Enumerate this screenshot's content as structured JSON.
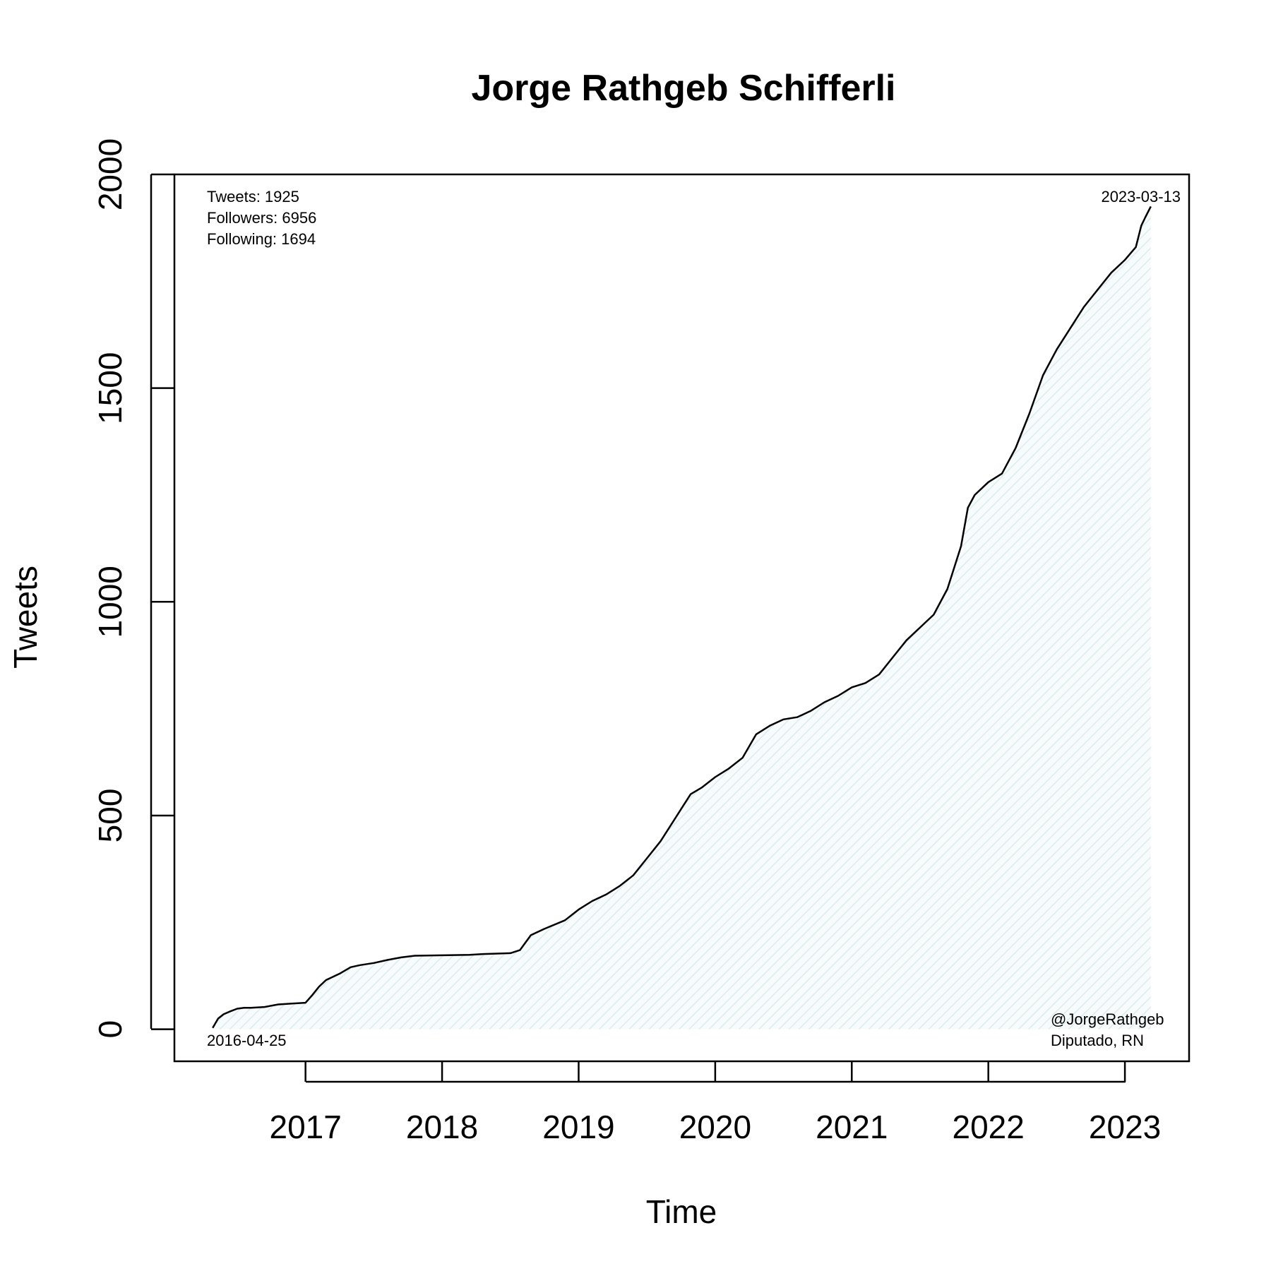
{
  "chart_data": {
    "type": "area",
    "title": "Jorge Rathgeb Schifferli",
    "xlabel": "Time",
    "ylabel": "Tweets",
    "x_ticks": [
      2017,
      2018,
      2019,
      2020,
      2021,
      2022,
      2023
    ],
    "y_ticks": [
      0,
      500,
      1000,
      1500,
      2000
    ],
    "xlim": [
      2016.04,
      2023.47
    ],
    "ylim": [
      -75,
      2000
    ],
    "grid": false,
    "start_date": "2016-04-25",
    "end_date": "2023-03-13",
    "stats": {
      "tweets": "Tweets: 1925",
      "followers": "Followers: 6956",
      "following": "Following: 1694"
    },
    "handle": "@JorgeRathgeb",
    "role": "Diputado, RN",
    "fill_color": "#e4f1f5",
    "line_color": "#000000",
    "series": [
      {
        "x": [
          2016.32,
          2016.36,
          2016.4,
          2016.45,
          2016.5,
          2016.55,
          2016.6,
          2016.7,
          2016.8,
          2016.9,
          2017.0,
          2017.05,
          2017.1,
          2017.15,
          2017.25,
          2017.33,
          2017.4,
          2017.5,
          2017.6,
          2017.7,
          2017.8,
          2018.0,
          2018.2,
          2018.3,
          2018.5,
          2018.57,
          2018.65,
          2018.75,
          2018.9,
          2019.0,
          2019.1,
          2019.2,
          2019.3,
          2019.4,
          2019.5,
          2019.6,
          2019.7,
          2019.75,
          2019.82,
          2019.9,
          2020.0,
          2020.1,
          2020.2,
          2020.3,
          2020.4,
          2020.5,
          2020.6,
          2020.7,
          2020.8,
          2020.9,
          2021.0,
          2021.1,
          2021.2,
          2021.3,
          2021.4,
          2021.5,
          2021.6,
          2021.7,
          2021.8,
          2021.85,
          2021.9,
          2022.0,
          2022.1,
          2022.2,
          2022.3,
          2022.4,
          2022.5,
          2022.6,
          2022.7,
          2022.8,
          2022.9,
          2023.0,
          2023.08,
          2023.12,
          2023.15,
          2023.19
        ],
        "y": [
          3,
          25,
          35,
          42,
          48,
          50,
          50,
          52,
          58,
          60,
          62,
          80,
          100,
          115,
          130,
          145,
          150,
          155,
          162,
          168,
          172,
          173,
          174,
          176,
          178,
          185,
          220,
          235,
          255,
          280,
          300,
          315,
          335,
          360,
          400,
          440,
          490,
          515,
          550,
          565,
          590,
          610,
          635,
          690,
          710,
          725,
          730,
          745,
          765,
          780,
          800,
          810,
          830,
          870,
          910,
          940,
          970,
          1030,
          1130,
          1220,
          1250,
          1280,
          1300,
          1360,
          1440,
          1530,
          1590,
          1640,
          1690,
          1730,
          1770,
          1800,
          1830,
          1880,
          1900,
          1925
        ]
      }
    ]
  }
}
